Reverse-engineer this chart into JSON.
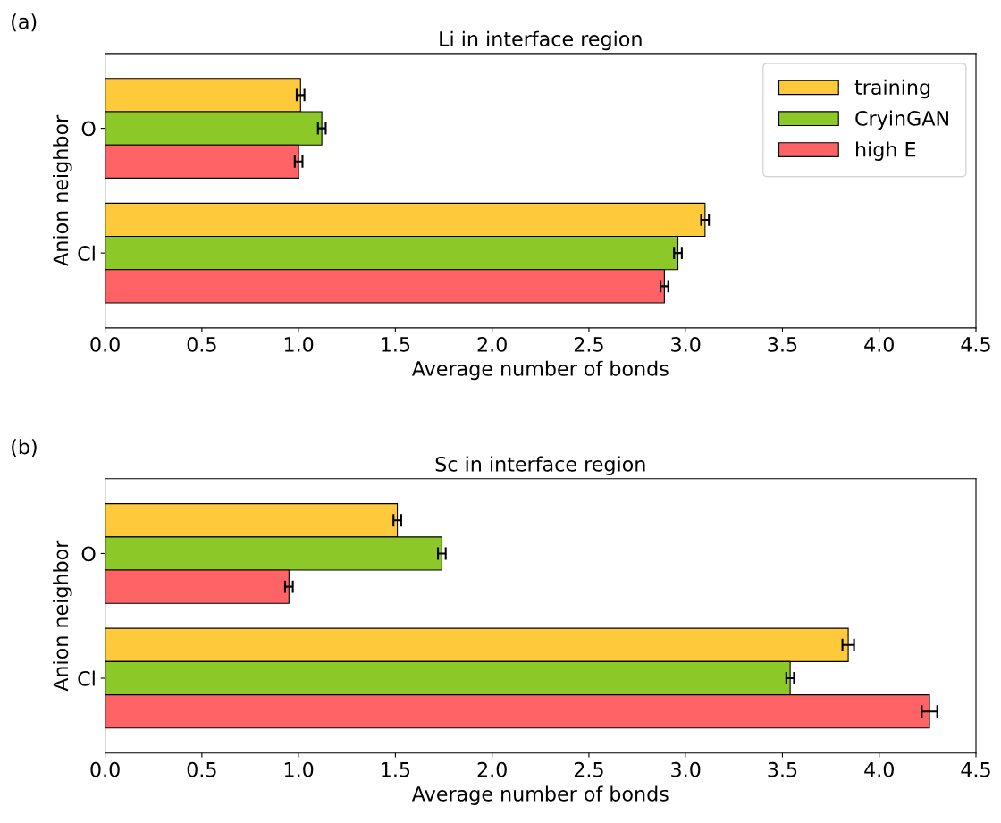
{
  "chart_data": [
    {
      "type": "bar",
      "orientation": "horizontal",
      "title": "Li in interface region",
      "xlabel": "Average number of bonds",
      "ylabel": "Anion neighbor",
      "annotations": [
        "(a)"
      ],
      "categories": [
        "O",
        "Cl"
      ],
      "xlim": [
        0,
        4.5
      ],
      "xticks": [
        {
          "value": 0,
          "label": "0.0"
        },
        0.5,
        {
          "value": 1,
          "label": "1.0"
        },
        1.5,
        {
          "value": 2,
          "label": "2.0"
        },
        2.5,
        {
          "value": 3,
          "label": "3.0"
        },
        3.5,
        {
          "value": 4,
          "label": "4.0"
        },
        4.5
      ],
      "legend": "top right",
      "grid": false,
      "series": [
        {
          "name": "training",
          "color": "#ffc93c",
          "values": [
            1.01,
            3.1
          ],
          "errors": [
            0.02,
            0.02
          ]
        },
        {
          "name": "CryinGAN",
          "color": "#8cc928",
          "values": [
            1.12,
            2.96
          ],
          "errors": [
            0.02,
            0.02
          ]
        },
        {
          "name": "high E",
          "color": "#ff6366",
          "values": [
            1.0,
            2.89
          ],
          "errors": [
            0.02,
            0.02
          ]
        }
      ]
    },
    {
      "type": "bar",
      "orientation": "horizontal",
      "title": "Sc in interface region",
      "xlabel": "Average number of bonds",
      "ylabel": "Anion neighbor",
      "annotations": [
        "(b)"
      ],
      "categories": [
        "O",
        "Cl"
      ],
      "xlim": [
        0,
        4.5
      ],
      "xticks": [
        {
          "value": 0,
          "label": "0.0"
        },
        0.5,
        {
          "value": 1,
          "label": "1.0"
        },
        1.5,
        {
          "value": 2,
          "label": "2.0"
        },
        2.5,
        {
          "value": 3,
          "label": "3.0"
        },
        3.5,
        {
          "value": 4,
          "label": "4.0"
        },
        4.5
      ],
      "grid": false,
      "series": [
        {
          "color": "#ffc93c",
          "values": [
            1.51,
            3.84
          ],
          "errors": [
            0.02,
            0.03
          ]
        },
        {
          "color": "#8cc928",
          "values": [
            1.74,
            3.54
          ],
          "errors": [
            0.02,
            0.02
          ]
        },
        {
          "color": "#ff6366",
          "values": [
            0.95,
            4.26
          ],
          "errors": [
            0.02,
            0.04
          ]
        }
      ]
    }
  ]
}
